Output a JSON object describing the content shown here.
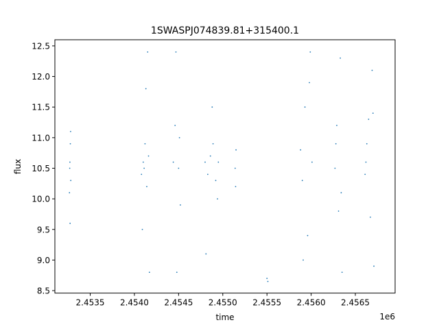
{
  "chart_data": {
    "type": "scatter",
    "title": "1SWASPJ074839.81+315400.1",
    "xlabel": "time",
    "ylabel": "flux",
    "offset_label": "1e6",
    "xlim": [
      2453100,
      2456950
    ],
    "ylim": [
      8.46,
      12.6
    ],
    "x_ticks": [
      2453500,
      2454000,
      2454500,
      2455000,
      2455500,
      2456000,
      2456500
    ],
    "x_tick_labels": [
      "2.4535",
      "2.4540",
      "2.4545",
      "2.4550",
      "2.4555",
      "2.4560",
      "2.4565"
    ],
    "y_ticks": [
      8.5,
      9.0,
      9.5,
      10.0,
      10.5,
      11.0,
      11.5,
      12.0,
      12.5
    ],
    "y_tick_labels": [
      "8.5",
      "9.0",
      "9.5",
      "10.0",
      "10.5",
      "11.0",
      "11.5",
      "12.0",
      "12.5"
    ],
    "grid": false,
    "marker_color": "#1f77b4",
    "series": [
      {
        "x": [
          2453270,
          2453280,
          2453275,
          2453265,
          2453272,
          2453278,
          2453268,
          2454080,
          2454100,
          2454120,
          2454140,
          2454160,
          2454090,
          2454130,
          2454150,
          2454170,
          2454110,
          2454440,
          2454460,
          2454500,
          2454520,
          2454480,
          2454470,
          2454510,
          2454800,
          2454830,
          2454860,
          2454890,
          2454920,
          2454950,
          2454810,
          2454880,
          2454940,
          2455140,
          2455150,
          2455145,
          2455500,
          2455510,
          2455880,
          2455900,
          2455930,
          2455960,
          2455990,
          2456010,
          2455910,
          2455980,
          2456270,
          2456290,
          2456310,
          2456330,
          2456350,
          2456280,
          2456340,
          2456610,
          2456630,
          2456650,
          2456670,
          2456690,
          2456710,
          2456620,
          2456700
        ],
        "y": [
          10.6,
          10.3,
          10.9,
          10.1,
          9.6,
          11.1,
          10.5,
          10.4,
          10.6,
          10.9,
          10.2,
          10.7,
          9.5,
          11.8,
          12.4,
          8.8,
          10.5,
          10.6,
          11.2,
          10.5,
          9.9,
          8.8,
          12.4,
          11.0,
          10.6,
          10.4,
          10.7,
          10.9,
          10.3,
          10.6,
          9.1,
          11.5,
          10.0,
          10.5,
          10.8,
          10.2,
          8.7,
          8.65,
          10.8,
          10.3,
          11.5,
          9.4,
          12.4,
          10.6,
          9.0,
          11.9,
          10.5,
          11.2,
          9.8,
          12.3,
          8.8,
          10.9,
          10.1,
          10.4,
          10.9,
          11.3,
          9.7,
          12.1,
          8.9,
          10.6,
          11.4
        ]
      }
    ]
  }
}
